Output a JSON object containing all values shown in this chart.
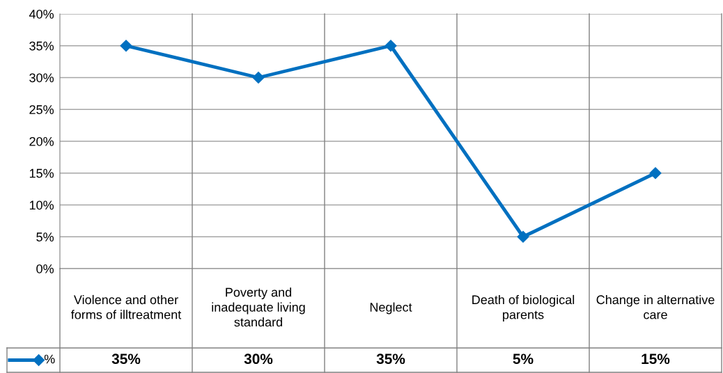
{
  "chart_data": {
    "type": "line",
    "categories": [
      "Violence and other forms of illtreatment",
      "Poverty and inadequate living standard",
      "Neglect",
      "Death of biological parents",
      "Change in alternative care"
    ],
    "series": [
      {
        "name": "%",
        "color": "#0070c0",
        "values": [
          35,
          30,
          35,
          5,
          15
        ]
      }
    ],
    "value_labels": [
      "35%",
      "30%",
      "35%",
      "5%",
      "15%"
    ],
    "ylim": [
      0,
      40
    ],
    "yticks": [
      {
        "value": 0,
        "label": "0%"
      },
      {
        "value": 5,
        "label": "5%"
      },
      {
        "value": 10,
        "label": "10%"
      },
      {
        "value": 15,
        "label": "15%"
      },
      {
        "value": 20,
        "label": "20%"
      },
      {
        "value": 25,
        "label": "25%"
      },
      {
        "value": 30,
        "label": "30%"
      },
      {
        "value": 35,
        "label": "35%"
      },
      {
        "value": 40,
        "label": "40%"
      }
    ],
    "grid": "y",
    "legend": "bottom left",
    "marker": "diamond",
    "line_style": "solid"
  }
}
